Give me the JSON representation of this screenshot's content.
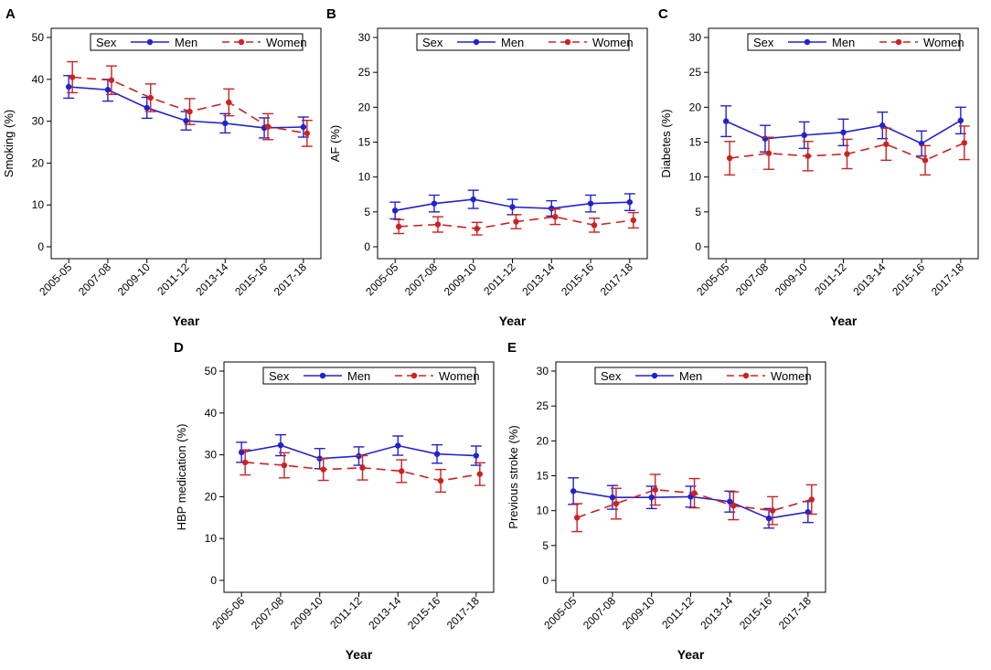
{
  "chart_data": [
    {
      "panel_letter": "A",
      "type": "line",
      "categories": [
        "2005-05",
        "2007-08",
        "2009-10",
        "2011-12",
        "2013-14",
        "2015-16",
        "2017-18"
      ],
      "xlabel": "Year",
      "ylabel": "Smoking (%)",
      "ylim": [
        0,
        50
      ],
      "yticks": [
        0,
        10,
        20,
        30,
        40,
        50
      ],
      "legend": {
        "title": "Sex",
        "position": "top"
      },
      "series": [
        {
          "name": "Men",
          "color": "#2222cc",
          "style": "solid",
          "values": [
            38.2,
            37.5,
            33.2,
            30.1,
            29.5,
            28.4,
            28.6
          ],
          "lower": [
            35.5,
            34.8,
            30.7,
            27.9,
            27.2,
            26.0,
            26.2
          ],
          "upper": [
            40.9,
            40.0,
            35.7,
            32.3,
            31.8,
            30.8,
            31.0
          ]
        },
        {
          "name": "Women",
          "color": "#cc2222",
          "style": "dashed",
          "values": [
            40.5,
            39.8,
            35.6,
            32.3,
            34.5,
            28.7,
            27.1
          ],
          "lower": [
            36.8,
            36.4,
            32.3,
            29.2,
            31.3,
            25.6,
            24.0
          ],
          "upper": [
            44.2,
            43.2,
            38.9,
            35.4,
            37.7,
            31.8,
            30.2
          ]
        }
      ]
    },
    {
      "panel_letter": "B",
      "type": "line",
      "categories": [
        "2005-05",
        "2007-08",
        "2009-10",
        "2011-12",
        "2013-14",
        "2015-16",
        "2017-18"
      ],
      "xlabel": "Year",
      "ylabel": "AF (%)",
      "ylim": [
        0,
        30
      ],
      "yticks": [
        0,
        5,
        10,
        15,
        20,
        25,
        30
      ],
      "legend": {
        "title": "Sex",
        "position": "top"
      },
      "series": [
        {
          "name": "Men",
          "color": "#2222cc",
          "style": "solid",
          "values": [
            5.2,
            6.2,
            6.8,
            5.7,
            5.5,
            6.2,
            6.4
          ],
          "lower": [
            4.0,
            5.0,
            5.5,
            4.6,
            4.4,
            5.0,
            5.2
          ],
          "upper": [
            6.4,
            7.4,
            8.1,
            6.8,
            6.6,
            7.4,
            7.6
          ]
        },
        {
          "name": "Women",
          "color": "#cc2222",
          "style": "dashed",
          "values": [
            2.9,
            3.2,
            2.6,
            3.6,
            4.3,
            3.1,
            3.8
          ],
          "lower": [
            1.9,
            2.1,
            1.7,
            2.6,
            3.2,
            2.1,
            2.7
          ],
          "upper": [
            3.9,
            4.3,
            3.5,
            4.6,
            5.4,
            4.1,
            4.9
          ]
        }
      ]
    },
    {
      "panel_letter": "C",
      "type": "line",
      "categories": [
        "2005-05",
        "2007-08",
        "2009-10",
        "2011-12",
        "2013-14",
        "2015-16",
        "2017-18"
      ],
      "xlabel": "Year",
      "ylabel": "Diabetes (%)",
      "ylim": [
        0,
        30
      ],
      "yticks": [
        0,
        5,
        10,
        15,
        20,
        25,
        30
      ],
      "legend": {
        "title": "Sex",
        "position": "top"
      },
      "series": [
        {
          "name": "Men",
          "color": "#2222cc",
          "style": "solid",
          "values": [
            18.0,
            15.5,
            16.0,
            16.4,
            17.4,
            14.8,
            18.1
          ],
          "lower": [
            15.8,
            13.6,
            14.1,
            14.5,
            15.5,
            13.0,
            16.2
          ],
          "upper": [
            20.2,
            17.4,
            17.9,
            18.3,
            19.3,
            16.6,
            20.0
          ]
        },
        {
          "name": "Women",
          "color": "#cc2222",
          "style": "dashed",
          "values": [
            12.7,
            13.4,
            13.0,
            13.3,
            14.7,
            12.4,
            14.9
          ],
          "lower": [
            10.3,
            11.1,
            10.9,
            11.2,
            12.4,
            10.3,
            12.5
          ],
          "upper": [
            15.1,
            15.7,
            15.1,
            15.4,
            17.0,
            14.5,
            17.3
          ]
        }
      ]
    },
    {
      "panel_letter": "D",
      "type": "line",
      "categories": [
        "2005-06",
        "2007-08",
        "2009-10",
        "2011-12",
        "2013-14",
        "2015-16",
        "2017-18"
      ],
      "xlabel": "Year",
      "ylabel": "HBP medication (%)",
      "ylim": [
        0,
        50
      ],
      "yticks": [
        0,
        10,
        20,
        30,
        40,
        50
      ],
      "legend": {
        "title": "Sex",
        "position": "top"
      },
      "series": [
        {
          "name": "Men",
          "color": "#2222cc",
          "style": "solid",
          "values": [
            30.6,
            32.3,
            29.1,
            29.7,
            32.2,
            30.2,
            29.8
          ],
          "lower": [
            28.2,
            29.8,
            26.7,
            27.5,
            29.9,
            28.0,
            27.5
          ],
          "upper": [
            33.0,
            34.8,
            31.5,
            31.9,
            34.5,
            32.4,
            32.1
          ]
        },
        {
          "name": "Women",
          "color": "#cc2222",
          "style": "dashed",
          "values": [
            28.2,
            27.5,
            26.5,
            26.9,
            26.1,
            23.8,
            25.4
          ],
          "lower": [
            25.2,
            24.5,
            23.9,
            24.0,
            23.4,
            21.1,
            22.7
          ],
          "upper": [
            31.2,
            30.5,
            29.1,
            29.8,
            28.8,
            26.5,
            28.1
          ]
        }
      ]
    },
    {
      "panel_letter": "E",
      "type": "line",
      "categories": [
        "2005-05",
        "2007-08",
        "2009-10",
        "2011-12",
        "2013-14",
        "2015-16",
        "2017-18"
      ],
      "xlabel": "Year",
      "ylabel": "Previous stroke (%)",
      "ylim": [
        0,
        30
      ],
      "yticks": [
        0,
        5,
        10,
        15,
        20,
        25,
        30
      ],
      "legend": {
        "title": "Sex",
        "position": "top"
      },
      "series": [
        {
          "name": "Men",
          "color": "#2222cc",
          "style": "solid",
          "values": [
            12.8,
            11.9,
            11.9,
            12.0,
            11.3,
            8.9,
            9.8
          ],
          "lower": [
            10.9,
            10.2,
            10.3,
            10.5,
            9.8,
            7.5,
            8.3
          ],
          "upper": [
            14.7,
            13.6,
            13.5,
            13.5,
            12.8,
            10.3,
            11.3
          ]
        },
        {
          "name": "Women",
          "color": "#cc2222",
          "style": "dashed",
          "values": [
            9.0,
            11.0,
            13.0,
            12.5,
            10.7,
            10.0,
            11.6
          ],
          "lower": [
            7.0,
            8.8,
            10.8,
            10.4,
            8.7,
            8.0,
            9.5
          ],
          "upper": [
            11.0,
            13.2,
            15.2,
            14.6,
            12.7,
            12.0,
            13.7
          ]
        }
      ]
    }
  ]
}
